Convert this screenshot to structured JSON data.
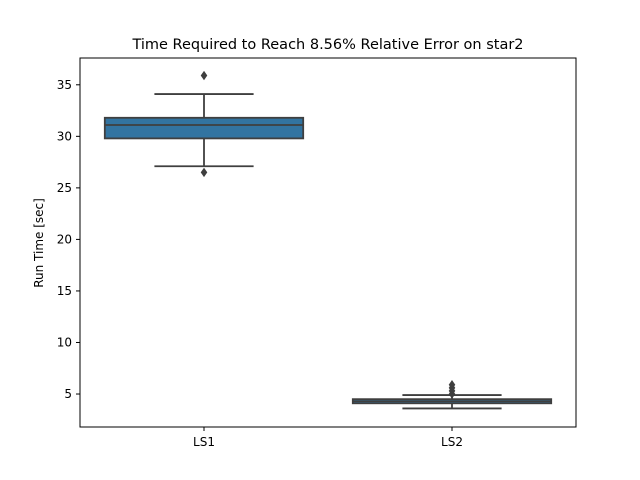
{
  "chart_data": {
    "type": "box",
    "title": "Time Required to Reach 8.56% Relative Error on star2",
    "xlabel": "",
    "ylabel": "Run Time [sec]",
    "categories": [
      "LS1",
      "LS2"
    ],
    "ylim": [
      1.8,
      37.6
    ],
    "yticks": [
      5,
      10,
      15,
      20,
      25,
      30,
      35
    ],
    "grid": false,
    "boxes": [
      {
        "name": "LS1",
        "whisker_low": 27.1,
        "q1": 29.8,
        "median": 31.1,
        "q3": 31.8,
        "whisker_high": 34.1,
        "outliers": [
          35.9,
          26.5
        ],
        "color": "#3274a1"
      },
      {
        "name": "LS2",
        "whisker_low": 3.6,
        "q1": 4.1,
        "median": 4.3,
        "q3": 4.5,
        "whisker_high": 4.9,
        "outliers": [
          5.0,
          5.3,
          5.6,
          5.9
        ],
        "color": "#3274a1"
      }
    ],
    "colors": {
      "edge": "#3f3f3f",
      "axis": "#000000"
    }
  }
}
